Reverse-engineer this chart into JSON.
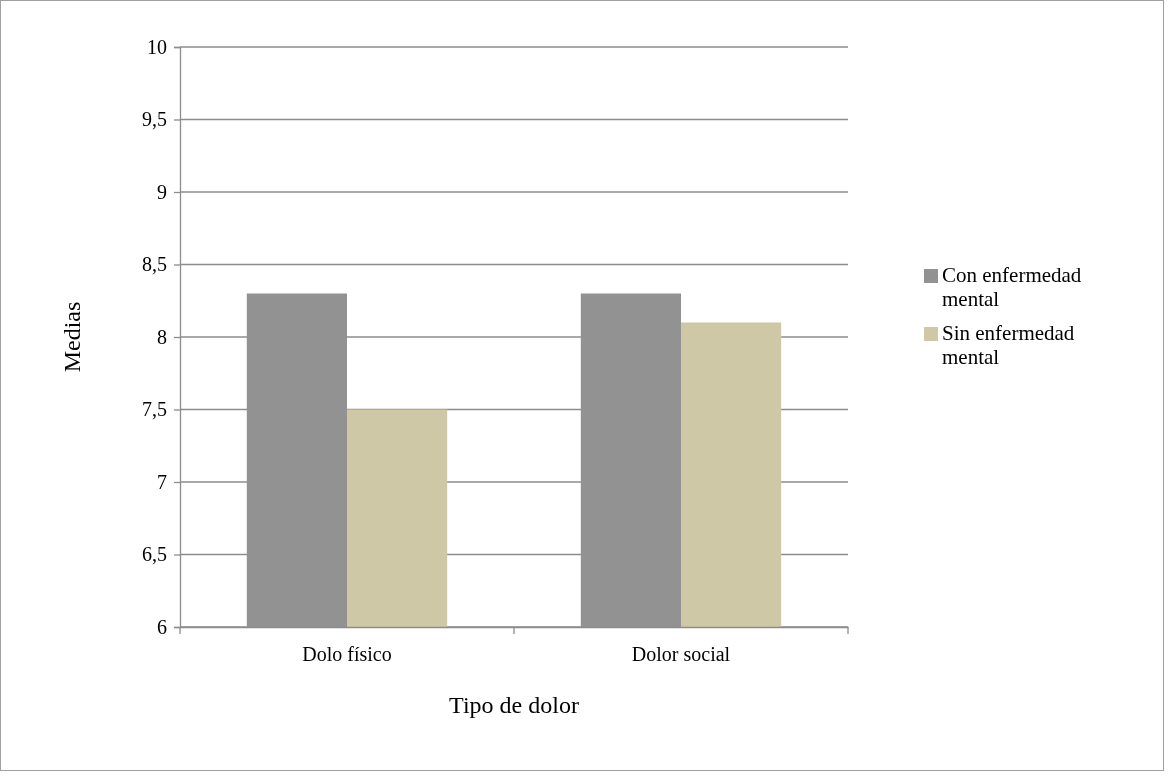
{
  "chart_data": {
    "type": "bar",
    "xlabel": "Tipo de dolor",
    "ylabel": "Medias",
    "categories": [
      "Dolo físico",
      "Dolor social"
    ],
    "series": [
      {
        "name": "Con enfermedad mental",
        "color": "#929292",
        "values": [
          8.3,
          8.3
        ]
      },
      {
        "name": "Sin enfermedad mental",
        "color": "#cfc8a7",
        "values": [
          7.5,
          8.1
        ]
      }
    ],
    "ylim": [
      6,
      10
    ],
    "yticks": [
      6,
      {
        "value": 6.5,
        "label": "6,5"
      },
      7,
      {
        "value": 7.5,
        "label": "7,5"
      },
      8,
      {
        "value": 8.5,
        "label": "8,5"
      },
      9,
      {
        "value": 9.5,
        "label": "9,5"
      },
      10
    ],
    "grid": "y",
    "legend": "right"
  }
}
